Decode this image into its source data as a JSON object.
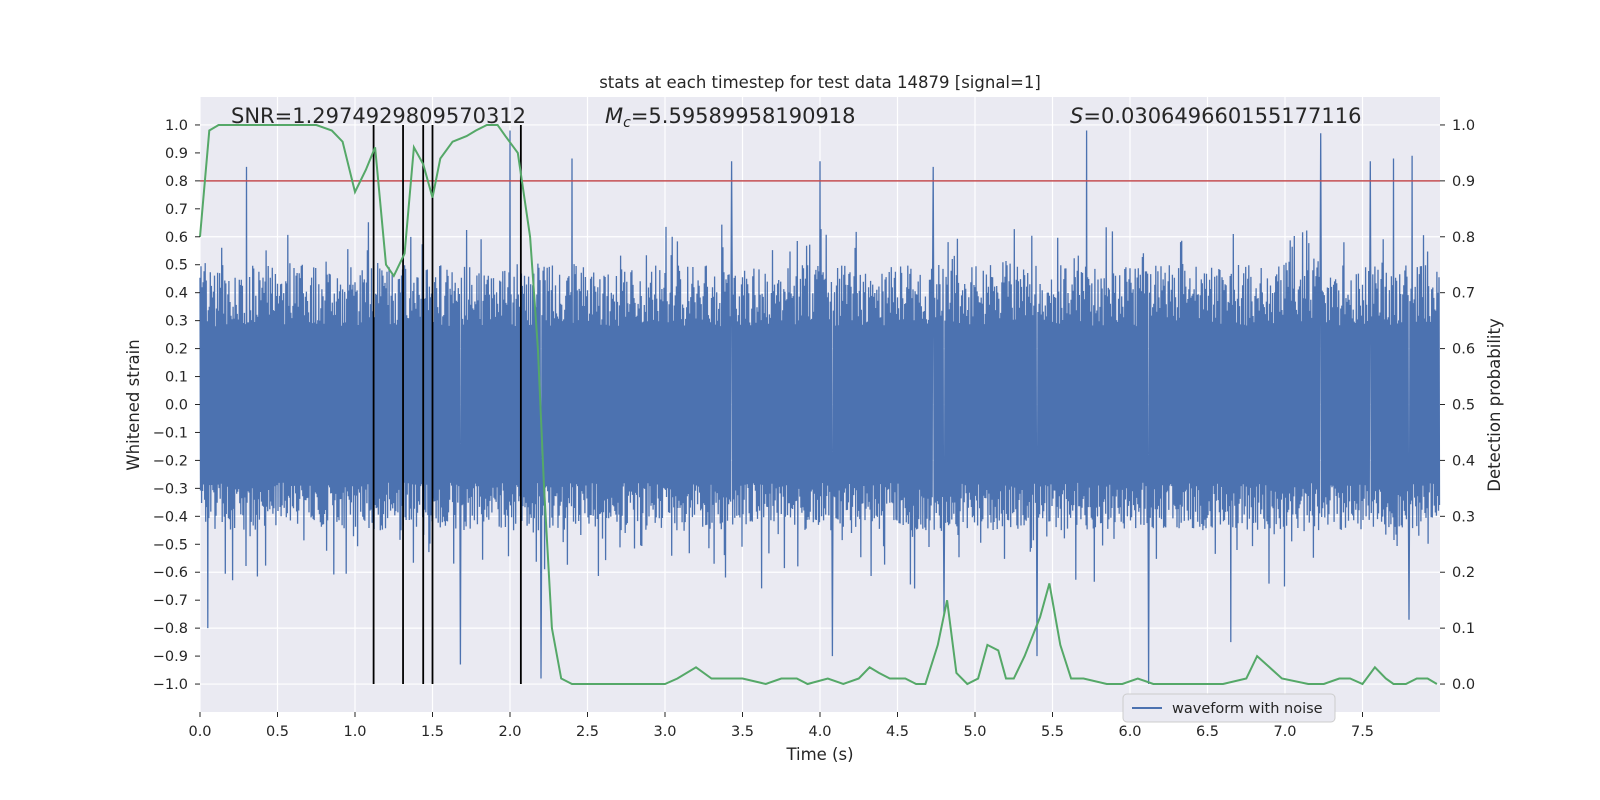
{
  "chart_data": {
    "type": "line",
    "title": "stats at each timestep for test data 14879 [signal=1]",
    "xlabel": "Time (s)",
    "ylabel": "Whitened strain",
    "ylabel_right": "Detection probability",
    "xlim": [
      0.0,
      8.0
    ],
    "ylim": [
      -1.1,
      1.1
    ],
    "ylim_right": [
      -0.05,
      1.05
    ],
    "x_ticks": [
      0.0,
      0.5,
      1.0,
      1.5,
      2.0,
      2.5,
      3.0,
      3.5,
      4.0,
      4.5,
      5.0,
      5.5,
      6.0,
      6.5,
      7.0,
      7.5
    ],
    "x_tick_labels": [
      "0.0",
      "0.5",
      "1.0",
      "1.5",
      "2.0",
      "2.5",
      "3.0",
      "3.5",
      "4.0",
      "4.5",
      "5.0",
      "5.5",
      "6.0",
      "6.5",
      "7.0",
      "7.5"
    ],
    "y_ticks": [
      1.0,
      0.9,
      0.8,
      0.7,
      0.6,
      0.5,
      0.4,
      0.3,
      0.2,
      0.1,
      0.0,
      -0.1,
      -0.2,
      -0.3,
      -0.4,
      -0.5,
      -0.6,
      -0.7,
      -0.8,
      -0.9,
      -1.0
    ],
    "y_tick_labels": [
      "1.0",
      "0.9",
      "0.8",
      "0.7",
      "0.6",
      "0.5",
      "0.4",
      "0.3",
      "0.2",
      "0.1",
      "0.0",
      "−0.1",
      "−0.2",
      "−0.3",
      "−0.4",
      "−0.5",
      "−0.6",
      "−0.7",
      "−0.8",
      "−0.9",
      "−1.0"
    ],
    "y_right_ticks": [
      1.0,
      0.9,
      0.8,
      0.7,
      0.6,
      0.5,
      0.4,
      0.3,
      0.2,
      0.1,
      0.0
    ],
    "y_right_tick_labels": [
      "1.0",
      "0.9",
      "0.8",
      "0.7",
      "0.6",
      "0.5",
      "0.4",
      "0.3",
      "0.2",
      "0.1",
      "0.0"
    ],
    "threshold": 0.9,
    "vertical_lines_x": [
      1.12,
      1.31,
      1.44,
      1.5,
      2.07
    ],
    "vertical_lines_ymin": -1.0,
    "vertical_lines_ymax": 1.0,
    "annotations": {
      "snr": "SNR=1.2974929809570312",
      "mc_symbol": "M",
      "mc_sub": "c",
      "mc_value": "=5.59589958190918",
      "s_symbol": "S",
      "s_value": "=0.030649660155177116"
    },
    "legend": [
      {
        "name": "waveform with noise",
        "color": "#4c72b0"
      }
    ],
    "legend_location": "lower-right",
    "waveform": {
      "name": "waveform with noise",
      "color": "#4c72b0",
      "envelope_pos": 0.5,
      "envelope_neg": -0.45,
      "spikes": [
        {
          "x": 2.0,
          "y": 0.98
        },
        {
          "x": 5.72,
          "y": 0.98
        },
        {
          "x": 7.23,
          "y": 0.97
        },
        {
          "x": 4.0,
          "y": 0.87
        },
        {
          "x": 7.7,
          "y": 0.88
        },
        {
          "x": 2.4,
          "y": 0.88
        },
        {
          "x": 3.43,
          "y": 0.87
        },
        {
          "x": 7.55,
          "y": 0.87
        },
        {
          "x": 7.82,
          "y": 0.89
        },
        {
          "x": 4.73,
          "y": 0.85
        },
        {
          "x": 0.3,
          "y": 0.85
        },
        {
          "x": 6.12,
          "y": -1.0
        },
        {
          "x": 4.08,
          "y": -0.9
        },
        {
          "x": 5.4,
          "y": -0.9
        },
        {
          "x": 1.68,
          "y": -0.93
        },
        {
          "x": 0.05,
          "y": -0.8
        },
        {
          "x": 7.8,
          "y": -0.77
        },
        {
          "x": 6.65,
          "y": -0.85
        },
        {
          "x": 4.8,
          "y": -0.75
        },
        {
          "x": 2.2,
          "y": -0.98
        }
      ]
    },
    "probability_curve": {
      "name": "detection probability",
      "color": "#55a868",
      "x": [
        0.0,
        0.06,
        0.12,
        0.25,
        0.5,
        0.75,
        0.85,
        0.92,
        1.0,
        1.07,
        1.13,
        1.2,
        1.25,
        1.32,
        1.38,
        1.44,
        1.5,
        1.55,
        1.63,
        1.72,
        1.78,
        1.85,
        1.92,
        1.97,
        2.05,
        2.13,
        2.18,
        2.22,
        2.27,
        2.33,
        2.4,
        2.55,
        2.8,
        3.0,
        3.08,
        3.2,
        3.3,
        3.5,
        3.65,
        3.75,
        3.85,
        3.92,
        4.05,
        4.15,
        4.25,
        4.32,
        4.38,
        4.45,
        4.55,
        4.62,
        4.68,
        4.76,
        4.82,
        4.88,
        4.95,
        5.02,
        5.08,
        5.15,
        5.2,
        5.25,
        5.32,
        5.42,
        5.48,
        5.55,
        5.62,
        5.7,
        5.85,
        5.95,
        6.05,
        6.15,
        6.35,
        6.6,
        6.75,
        6.82,
        6.9,
        6.98,
        7.15,
        7.25,
        7.35,
        7.42,
        7.5,
        7.58,
        7.65,
        7.7,
        7.78,
        7.85,
        7.92,
        7.98
      ],
      "y": [
        0.8,
        0.99,
        1.0,
        1.0,
        1.0,
        1.0,
        0.99,
        0.97,
        0.88,
        0.92,
        0.96,
        0.75,
        0.73,
        0.77,
        0.96,
        0.93,
        0.87,
        0.94,
        0.97,
        0.98,
        0.99,
        1.0,
        1.0,
        0.98,
        0.95,
        0.8,
        0.6,
        0.35,
        0.1,
        0.01,
        0.0,
        0.0,
        0.0,
        0.0,
        0.01,
        0.03,
        0.01,
        0.01,
        0.0,
        0.01,
        0.01,
        0.0,
        0.01,
        0.0,
        0.01,
        0.03,
        0.02,
        0.01,
        0.01,
        0.0,
        0.0,
        0.07,
        0.15,
        0.02,
        0.0,
        0.01,
        0.07,
        0.06,
        0.01,
        0.01,
        0.05,
        0.12,
        0.18,
        0.07,
        0.01,
        0.01,
        0.0,
        0.0,
        0.01,
        0.0,
        0.0,
        0.0,
        0.01,
        0.05,
        0.03,
        0.01,
        0.0,
        0.0,
        0.01,
        0.01,
        0.0,
        0.03,
        0.01,
        0.0,
        0.0,
        0.01,
        0.01,
        0.0
      ]
    }
  }
}
